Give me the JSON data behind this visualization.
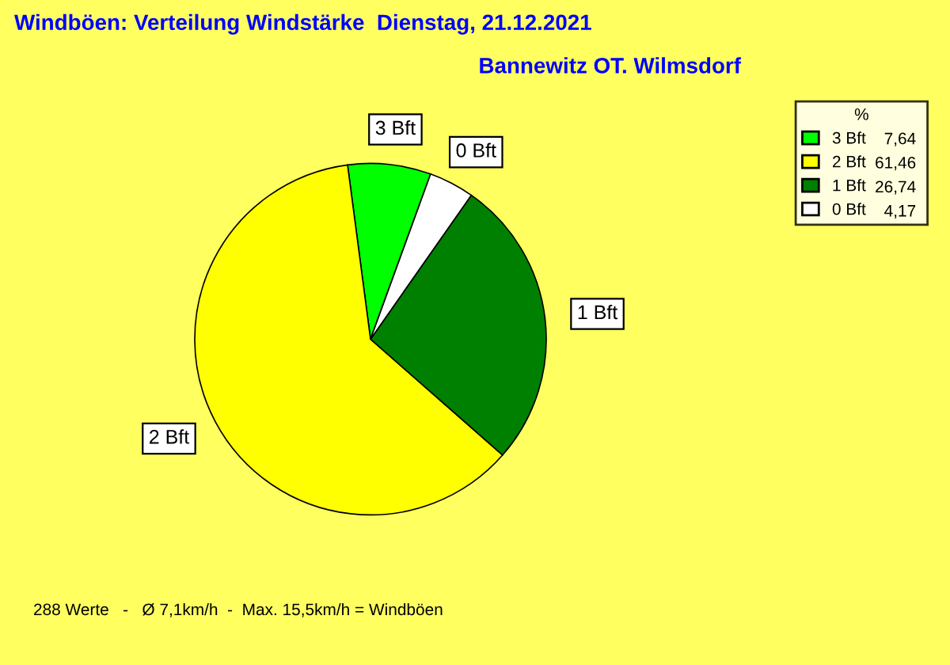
{
  "chart_data": {
    "type": "pie",
    "title": "Windböen: Verteilung Windstärke  Dienstag, 21.12.2021",
    "subtitle": "Bannewitz OT. Wilmsdorf",
    "categories": [
      "3 Bft",
      "2 Bft",
      "1 Bft",
      "0 Bft"
    ],
    "values": [
      7.64,
      61.46,
      26.74,
      4.17
    ],
    "value_labels": [
      "7,64",
      "61,46",
      "26,74",
      "4,17"
    ],
    "colors": [
      "#00ff00",
      "#ffff00",
      "#008000",
      "#ffffff"
    ],
    "legend": "top right",
    "legend_title": "%",
    "annotations": [
      "288 Werte   -   Ø 7,1km/h  -  Max. 15,5km/h = Windböen"
    ]
  }
}
